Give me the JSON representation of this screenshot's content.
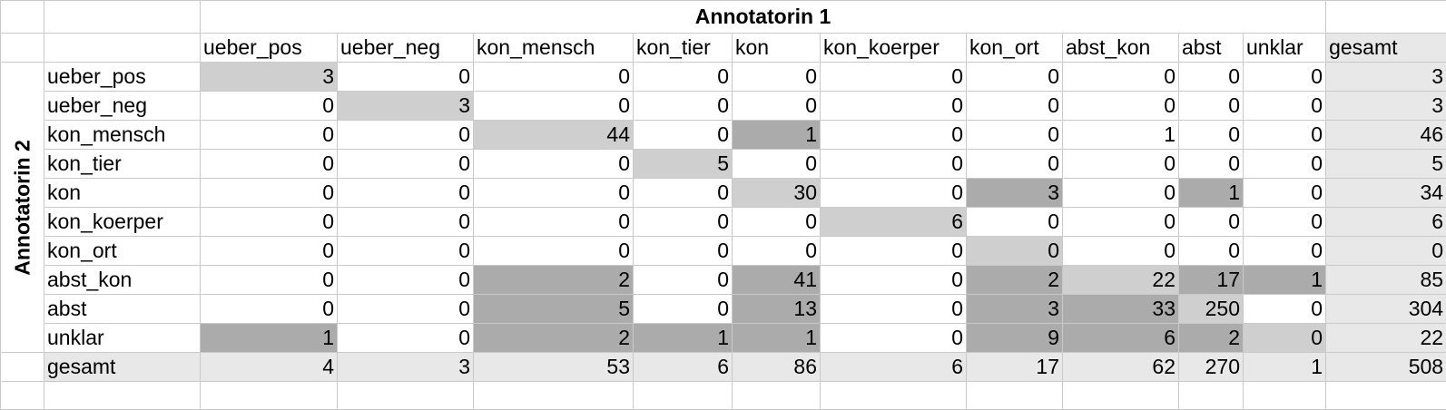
{
  "table": {
    "top_title": "Annotatorin 1",
    "side_title": "Annotatorin 2",
    "column_headers": [
      "ueber_pos",
      "ueber_neg",
      "kon_mensch",
      "kon_tier",
      "kon",
      "kon_koerper",
      "kon_ort",
      "abst_kon",
      "abst",
      "unklar",
      "gesamt"
    ],
    "rows": [
      {
        "label": "ueber_pos",
        "values": [
          "3",
          "0",
          "0",
          "0",
          "0",
          "0",
          "0",
          "0",
          "0",
          "0",
          "3"
        ]
      },
      {
        "label": "ueber_neg",
        "values": [
          "0",
          "3",
          "0",
          "0",
          "0",
          "0",
          "0",
          "0",
          "0",
          "0",
          "3"
        ]
      },
      {
        "label": "kon_mensch",
        "values": [
          "0",
          "0",
          "44",
          "0",
          "1",
          "0",
          "0",
          "1",
          "0",
          "0",
          "46"
        ]
      },
      {
        "label": "kon_tier",
        "values": [
          "0",
          "0",
          "0",
          "5",
          "0",
          "0",
          "0",
          "0",
          "0",
          "0",
          "5"
        ]
      },
      {
        "label": "kon",
        "values": [
          "0",
          "0",
          "0",
          "0",
          "30",
          "0",
          "3",
          "0",
          "1",
          "0",
          "34"
        ]
      },
      {
        "label": "kon_koerper",
        "values": [
          "0",
          "0",
          "0",
          "0",
          "0",
          "6",
          "0",
          "0",
          "0",
          "0",
          "6"
        ]
      },
      {
        "label": "kon_ort",
        "values": [
          "0",
          "0",
          "0",
          "0",
          "0",
          "0",
          "0",
          "0",
          "0",
          "0",
          "0"
        ]
      },
      {
        "label": "abst_kon",
        "values": [
          "0",
          "0",
          "2",
          "0",
          "41",
          "0",
          "2",
          "22",
          "17",
          "1",
          "85"
        ]
      },
      {
        "label": "abst",
        "values": [
          "0",
          "0",
          "5",
          "0",
          "13",
          "0",
          "3",
          "33",
          "250",
          "0",
          "304"
        ]
      },
      {
        "label": "unklar",
        "values": [
          "1",
          "0",
          "2",
          "1",
          "1",
          "0",
          "9",
          "6",
          "2",
          "0",
          "22"
        ]
      },
      {
        "label": "gesamt",
        "values": [
          "4",
          "3",
          "53",
          "6",
          "86",
          "6",
          "17",
          "62",
          "270",
          "1",
          "508"
        ]
      }
    ]
  },
  "colors": {
    "diagonal": "#cfcfcf",
    "disagreement": "#ababab",
    "totals": "#e8e8e8",
    "gridline": "#c9c9c9"
  }
}
